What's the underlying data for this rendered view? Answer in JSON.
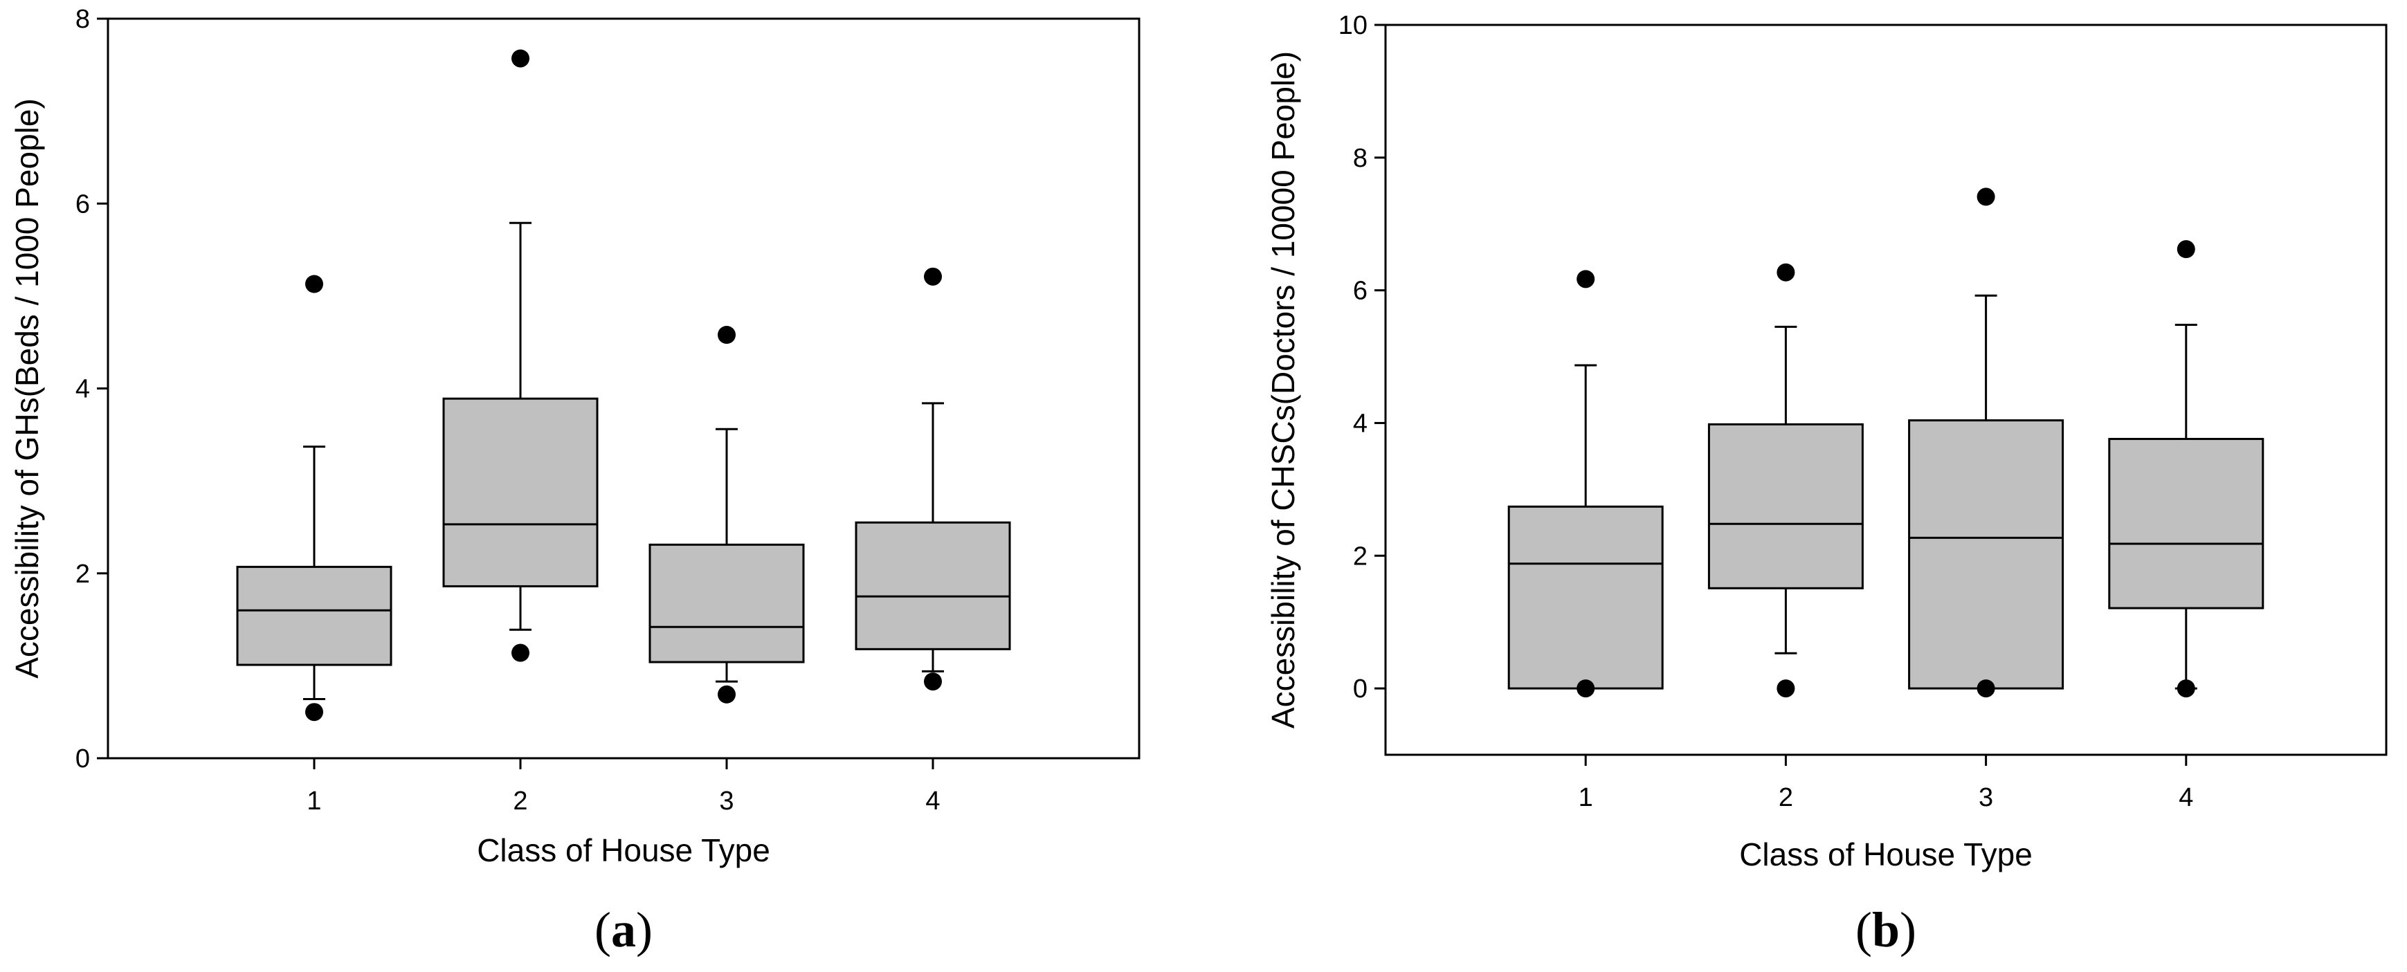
{
  "chart_data": [
    {
      "type": "box",
      "panel_label": "a",
      "xlabel": "Class of House Type",
      "ylabel": "Accessibility of GHs(Beds / 1000 People)",
      "ylim": [
        0,
        8
      ],
      "yticks": [
        0,
        2,
        4,
        6,
        8
      ],
      "categories": [
        "1",
        "2",
        "3",
        "4"
      ],
      "boxes": [
        {
          "category": "1",
          "q1": 1.01,
          "median": 1.6,
          "q3": 2.07,
          "whisker_low": 0.64,
          "whisker_high": 3.37,
          "outliers": [
            0.5,
            5.13
          ]
        },
        {
          "category": "2",
          "q1": 1.86,
          "median": 2.53,
          "q3": 3.89,
          "whisker_low": 1.39,
          "whisker_high": 5.79,
          "outliers": [
            1.14,
            7.57
          ]
        },
        {
          "category": "3",
          "q1": 1.04,
          "median": 1.42,
          "q3": 2.31,
          "whisker_low": 0.83,
          "whisker_high": 3.56,
          "outliers": [
            0.69,
            4.58
          ]
        },
        {
          "category": "4",
          "q1": 1.18,
          "median": 1.75,
          "q3": 2.55,
          "whisker_low": 0.94,
          "whisker_high": 3.84,
          "outliers": [
            0.83,
            5.21
          ]
        }
      ]
    },
    {
      "type": "box",
      "panel_label": "b",
      "xlabel": "Class of House Type",
      "ylabel": "Accessibility of CHSCs(Doctors / 10000 People)",
      "ylim": [
        -1,
        10
      ],
      "yticks": [
        0,
        2,
        4,
        6,
        8,
        10
      ],
      "categories": [
        "1",
        "2",
        "3",
        "4"
      ],
      "boxes": [
        {
          "category": "1",
          "q1": 0.0,
          "median": 1.88,
          "q3": 2.74,
          "whisker_low": 0.0,
          "whisker_high": 4.87,
          "outliers": [
            0.0,
            6.17
          ]
        },
        {
          "category": "2",
          "q1": 1.51,
          "median": 2.48,
          "q3": 3.98,
          "whisker_low": 0.53,
          "whisker_high": 5.45,
          "outliers": [
            0.0,
            6.27
          ]
        },
        {
          "category": "3",
          "q1": 0.0,
          "median": 2.27,
          "q3": 4.04,
          "whisker_low": 0.0,
          "whisker_high": 5.92,
          "outliers": [
            0.0,
            7.41
          ]
        },
        {
          "category": "4",
          "q1": 1.21,
          "median": 2.18,
          "q3": 3.76,
          "whisker_low": 0.0,
          "whisker_high": 5.48,
          "outliers": [
            0.0,
            6.62
          ]
        }
      ]
    }
  ]
}
